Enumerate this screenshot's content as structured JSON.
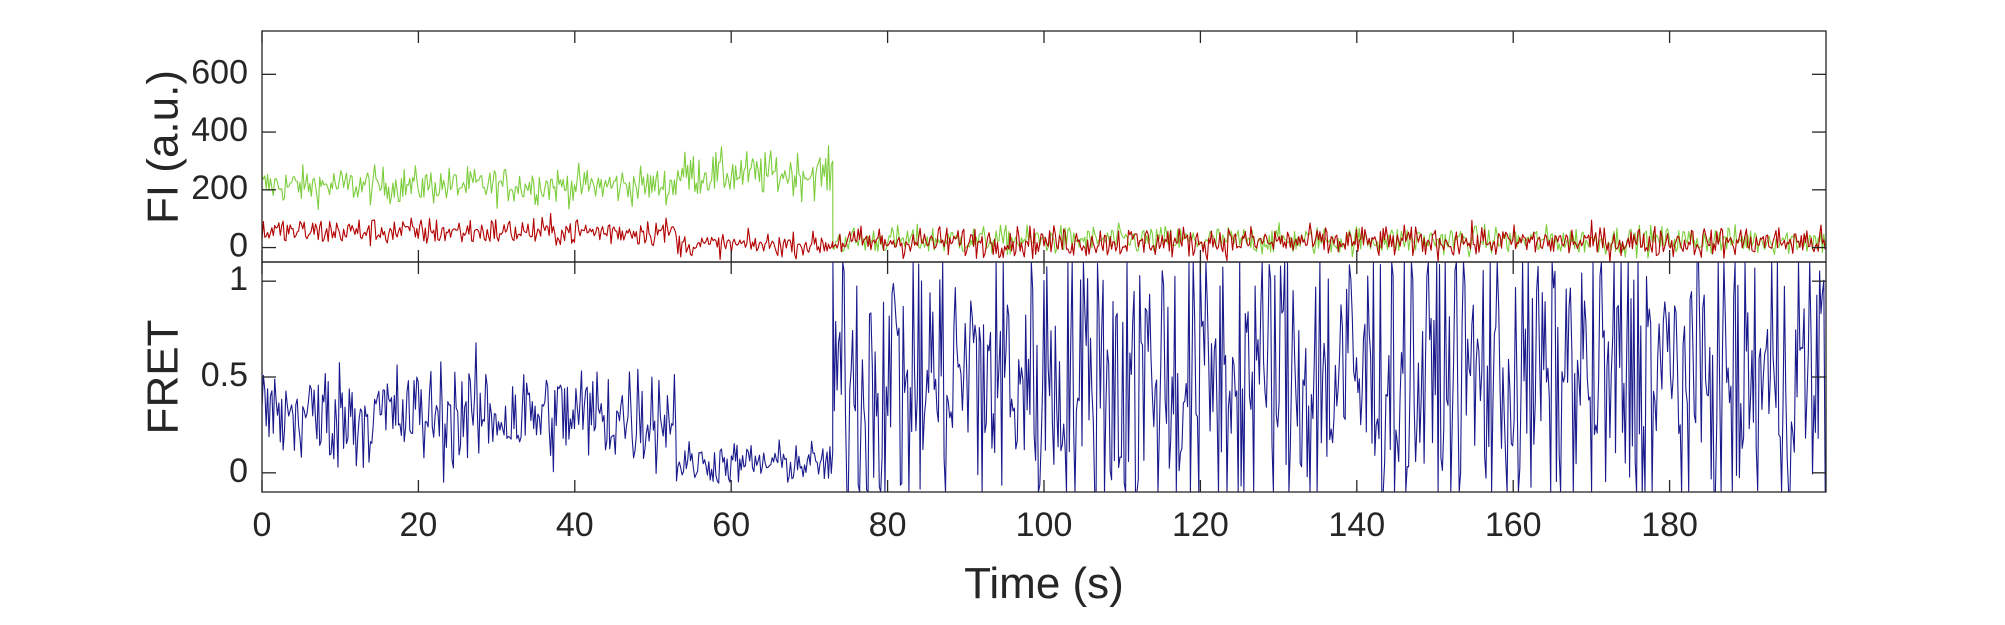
{
  "chart_data": [
    {
      "type": "line",
      "ylabel": "FI (a.u.)",
      "ylim": [
        -50,
        750
      ],
      "xlim": [
        0,
        200
      ],
      "yticks": [
        0,
        200,
        400,
        600
      ],
      "y_tick_labels": [
        "0",
        "200",
        "400",
        "600"
      ],
      "box": true,
      "series": [
        {
          "color": "#7CCD3C",
          "segments": [
            {
              "x": [
                0,
                53
              ],
              "level": 215,
              "noise": 45
            },
            {
              "x": [
                53,
                73
              ],
              "level": 255,
              "noise": 55
            },
            {
              "x": [
                73,
                200
              ],
              "level": 25,
              "noise": 35
            }
          ]
        },
        {
          "color": "#B20000",
          "segments": [
            {
              "x": [
                0,
                53
              ],
              "level": 55,
              "noise": 35
            },
            {
              "x": [
                53,
                73
              ],
              "level": 10,
              "noise": 28
            },
            {
              "x": [
                73,
                200
              ],
              "level": 20,
              "noise": 38
            }
          ]
        }
      ]
    },
    {
      "type": "line",
      "ylabel": "FRET",
      "xlabel": "Time (s)",
      "xlim": [
        0,
        200
      ],
      "ylim": [
        -0.1,
        1.1
      ],
      "xticks": [
        0,
        20,
        40,
        60,
        80,
        100,
        120,
        140,
        160,
        180
      ],
      "x_tick_labels": [
        "0",
        "20",
        "40",
        "60",
        "80",
        "100",
        "120",
        "140",
        "160",
        "180"
      ],
      "yticks": [
        0,
        0.5,
        1
      ],
      "y_tick_labels": [
        "0",
        "0.5",
        "1"
      ],
      "box": true,
      "series": [
        {
          "color": "#1A1A8C",
          "segments": [
            {
              "x": [
                0,
                53
              ],
              "level": 0.3,
              "noise": 0.2
            },
            {
              "x": [
                53,
                73
              ],
              "level": 0.05,
              "noise": 0.08
            },
            {
              "x": [
                73,
                200
              ],
              "level": 0.5,
              "noise": 0.6
            }
          ]
        }
      ]
    }
  ]
}
